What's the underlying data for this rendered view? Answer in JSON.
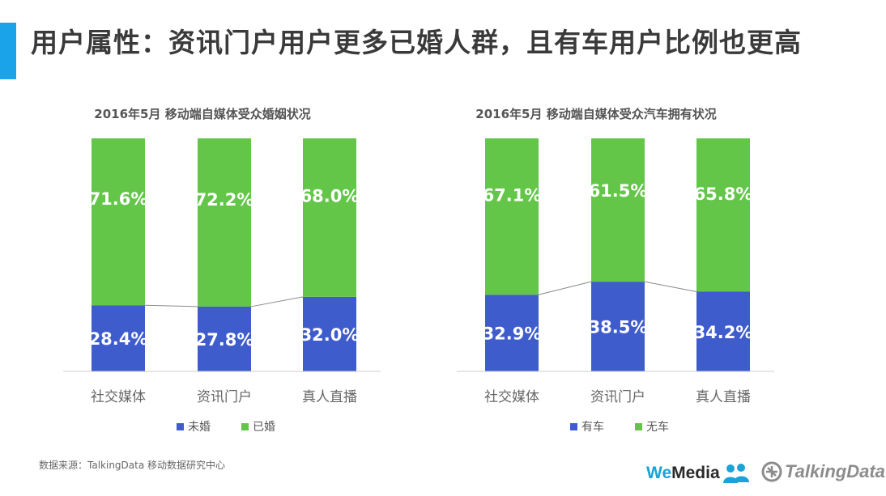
{
  "page": {
    "title": "用户属性：资讯门户用户更多已婚人群，且有车用户比例也更高",
    "source": "数据来源：TalkingData 移动数据研究中心"
  },
  "logos": {
    "wemedia_we": "We",
    "wemedia_media": "Media",
    "talkingdata": "TalkingData"
  },
  "colors": {
    "accent": "#1aa3e8",
    "blue": "#3f5ccc",
    "green": "#63c648"
  },
  "chart_data": [
    {
      "type": "bar",
      "stacked": true,
      "percent": true,
      "title": "2016年5月 移动端自媒体受众婚姻状况",
      "categories": [
        "社交媒体",
        "资讯门户",
        "真人直播"
      ],
      "series": [
        {
          "name": "未婚",
          "values": [
            28.4,
            27.8,
            32.0
          ],
          "labels": [
            "28.4%",
            "27.8%",
            "32.0%"
          ],
          "color": "#3f5ccc"
        },
        {
          "name": "已婚",
          "values": [
            71.6,
            72.2,
            68.0
          ],
          "labels": [
            "71.6%",
            "72.2%",
            "68.0%"
          ],
          "color": "#63c648"
        }
      ],
      "ylim": [
        0,
        100
      ],
      "grid": false,
      "connector_lines": true,
      "legend_position": "bottom"
    },
    {
      "type": "bar",
      "stacked": true,
      "percent": true,
      "title": "2016年5月 移动端自媒体受众汽车拥有状况",
      "categories": [
        "社交媒体",
        "资讯门户",
        "真人直播"
      ],
      "series": [
        {
          "name": "有车",
          "values": [
            32.9,
            38.5,
            34.2
          ],
          "labels": [
            "32.9%",
            "38.5%",
            "34.2%"
          ],
          "color": "#3f5ccc"
        },
        {
          "name": "无车",
          "values": [
            67.1,
            61.5,
            65.8
          ],
          "labels": [
            "67.1%",
            "61.5%",
            "65.8%"
          ],
          "color": "#63c648"
        }
      ],
      "ylim": [
        0,
        100
      ],
      "grid": false,
      "connector_lines": true,
      "legend_position": "bottom"
    }
  ]
}
